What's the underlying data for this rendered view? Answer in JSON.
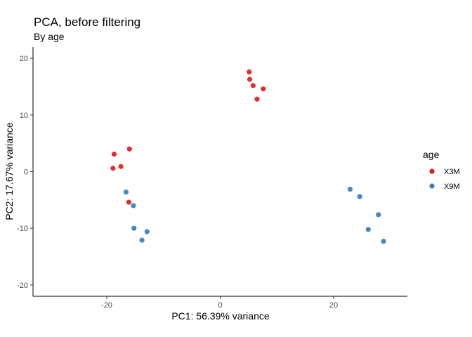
{
  "chart_data": {
    "type": "scatter",
    "title": "PCA, before filtering",
    "subtitle": "By age",
    "xlabel": "PC1: 56.39% variance",
    "ylabel": "PC2: 17.67% variance",
    "xlim": [
      -33,
      33
    ],
    "ylim": [
      -22,
      22
    ],
    "x_ticks": [
      -20,
      0,
      20
    ],
    "y_ticks": [
      -20,
      -10,
      0,
      10,
      20
    ],
    "x_tick_labels": [
      "-20",
      "0",
      "20"
    ],
    "y_tick_labels": [
      "-20",
      "-10",
      "0",
      "10",
      "20"
    ],
    "grid": false,
    "legend": {
      "title": "age",
      "position": "right"
    },
    "series": [
      {
        "name": "X3M",
        "color": "#e41a1c",
        "points": [
          {
            "x": 5.1,
            "y": 17.6
          },
          {
            "x": 5.2,
            "y": 16.3
          },
          {
            "x": 5.8,
            "y": 15.2
          },
          {
            "x": 7.6,
            "y": 14.6
          },
          {
            "x": 6.5,
            "y": 12.8
          },
          {
            "x": -18.7,
            "y": 3.1
          },
          {
            "x": -16.0,
            "y": 4.0
          },
          {
            "x": -17.5,
            "y": 0.9
          },
          {
            "x": -18.9,
            "y": 0.6
          },
          {
            "x": -16.1,
            "y": -5.4
          }
        ]
      },
      {
        "name": "X9M",
        "color": "#377eb8",
        "points": [
          {
            "x": -16.6,
            "y": -3.6
          },
          {
            "x": -15.3,
            "y": -6.0
          },
          {
            "x": -15.2,
            "y": -10.0
          },
          {
            "x": -12.9,
            "y": -10.6
          },
          {
            "x": -13.8,
            "y": -12.1
          },
          {
            "x": 22.9,
            "y": -3.1
          },
          {
            "x": 24.6,
            "y": -4.4
          },
          {
            "x": 27.9,
            "y": -7.6
          },
          {
            "x": 26.1,
            "y": -10.2
          },
          {
            "x": 28.8,
            "y": -12.3
          }
        ]
      }
    ]
  }
}
